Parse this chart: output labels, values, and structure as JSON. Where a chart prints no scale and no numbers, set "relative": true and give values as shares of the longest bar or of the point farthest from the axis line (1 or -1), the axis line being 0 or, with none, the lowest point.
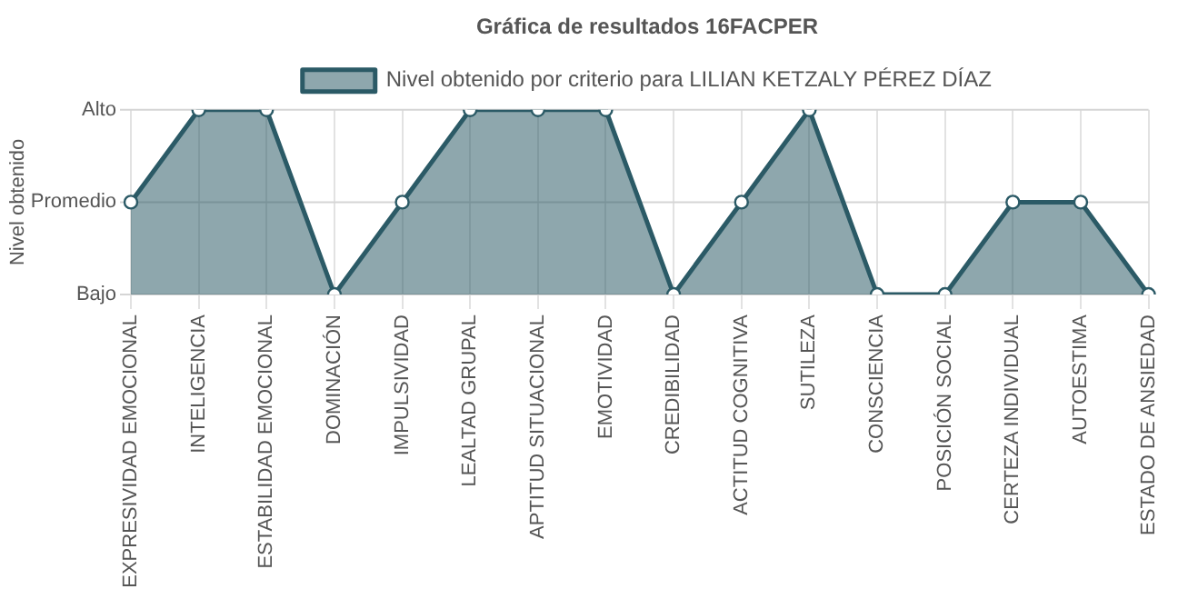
{
  "chart_data": {
    "type": "area",
    "title": "Gráfica de resultados 16FACPER",
    "ylabel": "Nivel obtenido",
    "categories": [
      "EXPRESIVIDAD EMOCIONAL",
      "INTELIGENCIA",
      "ESTABILIDAD EMOCIONAL",
      "DOMINACIÓN",
      "IMPULSIVIDAD",
      "LEALTAD GRUPAL",
      "APTITUD SITUACIONAL",
      "EMOTIVIDAD",
      "CREDIBILIDAD",
      "ACTITUD COGNITIVA",
      "SUTILEZA",
      "CONSCIENCIA",
      "POSICIÓN SOCIAL",
      "CERTEZA INDIVIDUAL",
      "AUTOESTIMA",
      "ESTADO DE ANSIEDAD"
    ],
    "series": [
      {
        "name": "Nivel obtenido por criterio para LILIAN KETZALY PÉREZ DÍAZ",
        "color": "#2b5a66",
        "values": [
          0.5,
          1,
          1,
          0,
          0.5,
          1,
          1,
          1,
          0,
          0.5,
          1,
          0,
          0,
          0.5,
          0.5,
          0
        ]
      }
    ],
    "relative": true,
    "ref_lines": [
      {
        "axis": "y",
        "value": 0,
        "label": "Bajo",
        "color": "#d5d5d5"
      },
      {
        "axis": "y",
        "value": 0.5,
        "label": "Promedio",
        "color": "#d5d5d5"
      },
      {
        "axis": "y",
        "value": 1,
        "label": "Alto",
        "color": "#d5d5d5"
      }
    ],
    "grid": "x",
    "legend": "top",
    "marker": "circle"
  }
}
